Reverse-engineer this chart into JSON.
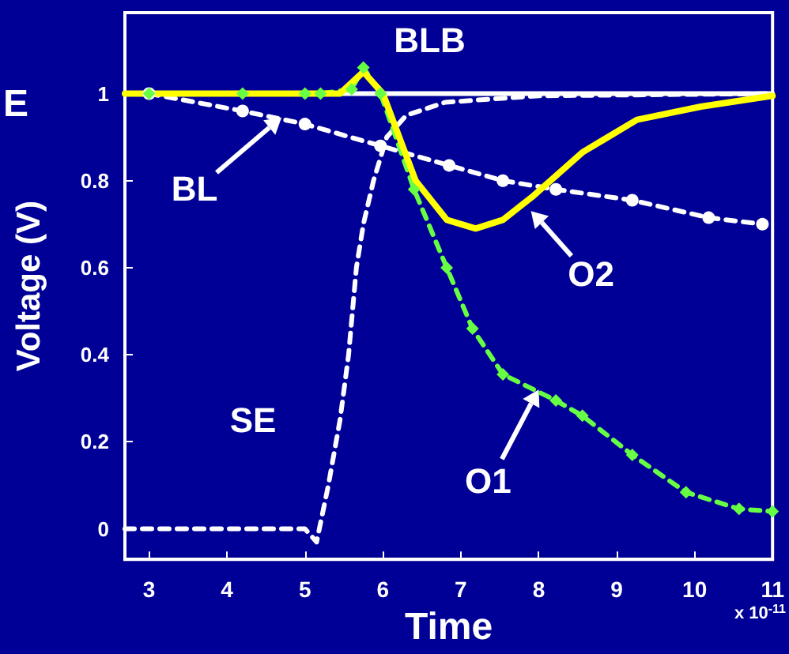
{
  "chart_data": {
    "type": "line",
    "xlabel": "Time",
    "ylabel": "Voltage (V)",
    "xlim": [
      2.69,
      11
    ],
    "xticks": [
      3,
      4,
      5,
      6,
      7,
      8,
      9,
      10,
      11
    ],
    "ylim": [
      -0.07,
      1.186
    ],
    "yticks": [
      0,
      0.2,
      0.4,
      0.6,
      0.8,
      1
    ],
    "grid": false,
    "series": [
      {
        "color": "#ffffff",
        "line_style": "solid",
        "marker": "none",
        "x": [
          2.69,
          11
        ],
        "values": [
          1,
          1
        ]
      },
      {
        "color": "#ffffff",
        "line_style": "dashed",
        "marker": "none",
        "x": [
          2.69,
          5.0,
          5.15,
          5.3,
          5.45,
          5.56,
          5.66,
          5.75,
          5.88,
          6.05,
          6.3,
          6.8,
          8,
          11
        ],
        "values": [
          0,
          0,
          -0.03,
          0.1,
          0.25,
          0.4,
          0.6,
          0.7,
          0.8,
          0.9,
          0.95,
          0.98,
          0.995,
          1
        ]
      },
      {
        "color": "#ffffff",
        "line_style": "dashed",
        "marker": "circle",
        "x": [
          3,
          4.2,
          5.0,
          5.97,
          6.85,
          7.54,
          8.22,
          9.2,
          10.18,
          10.87
        ],
        "values": [
          1,
          0.96,
          0.93,
          0.88,
          0.835,
          0.8,
          0.78,
          0.755,
          0.715,
          0.7
        ]
      },
      {
        "color": "#66ff44",
        "line_style": "dashed",
        "marker": "diamond",
        "x": [
          3,
          4.2,
          5.0,
          5.2,
          5.6,
          5.75,
          5.97,
          6.4,
          6.82,
          7.15,
          7.54,
          8.22,
          8.56,
          9.2,
          9.89,
          10.57,
          11
        ],
        "values": [
          1,
          1,
          1,
          1,
          1.01,
          1.06,
          1.0,
          0.78,
          0.6,
          0.46,
          0.355,
          0.295,
          0.26,
          0.17,
          0.084,
          0.046,
          0.04
        ]
      },
      {
        "color": "#ffff00",
        "line_style": "solid",
        "marker": "none",
        "x": [
          2.69,
          5.45,
          5.75,
          6.0,
          6.42,
          6.82,
          7.19,
          7.54,
          7.93,
          8.56,
          9.26,
          10.08,
          11
        ],
        "values": [
          1,
          1,
          1.05,
          1.0,
          0.8,
          0.71,
          0.69,
          0.71,
          0.765,
          0.865,
          0.94,
          0.97,
          0.995
        ]
      }
    ],
    "annotations": [
      {
        "text": "BLB",
        "x": 6.6,
        "y": 1
      },
      {
        "text": "BL",
        "x": 4.7,
        "y": 0.945
      },
      {
        "text": "O2",
        "x": 7.9,
        "y": 0.73
      },
      {
        "text": "SE",
        "x": 5.45,
        "y": 0.25
      },
      {
        "text": "O1",
        "x": 8.0,
        "y": 0.32
      },
      "x 10$^{-11}$",
      "E"
    ]
  }
}
